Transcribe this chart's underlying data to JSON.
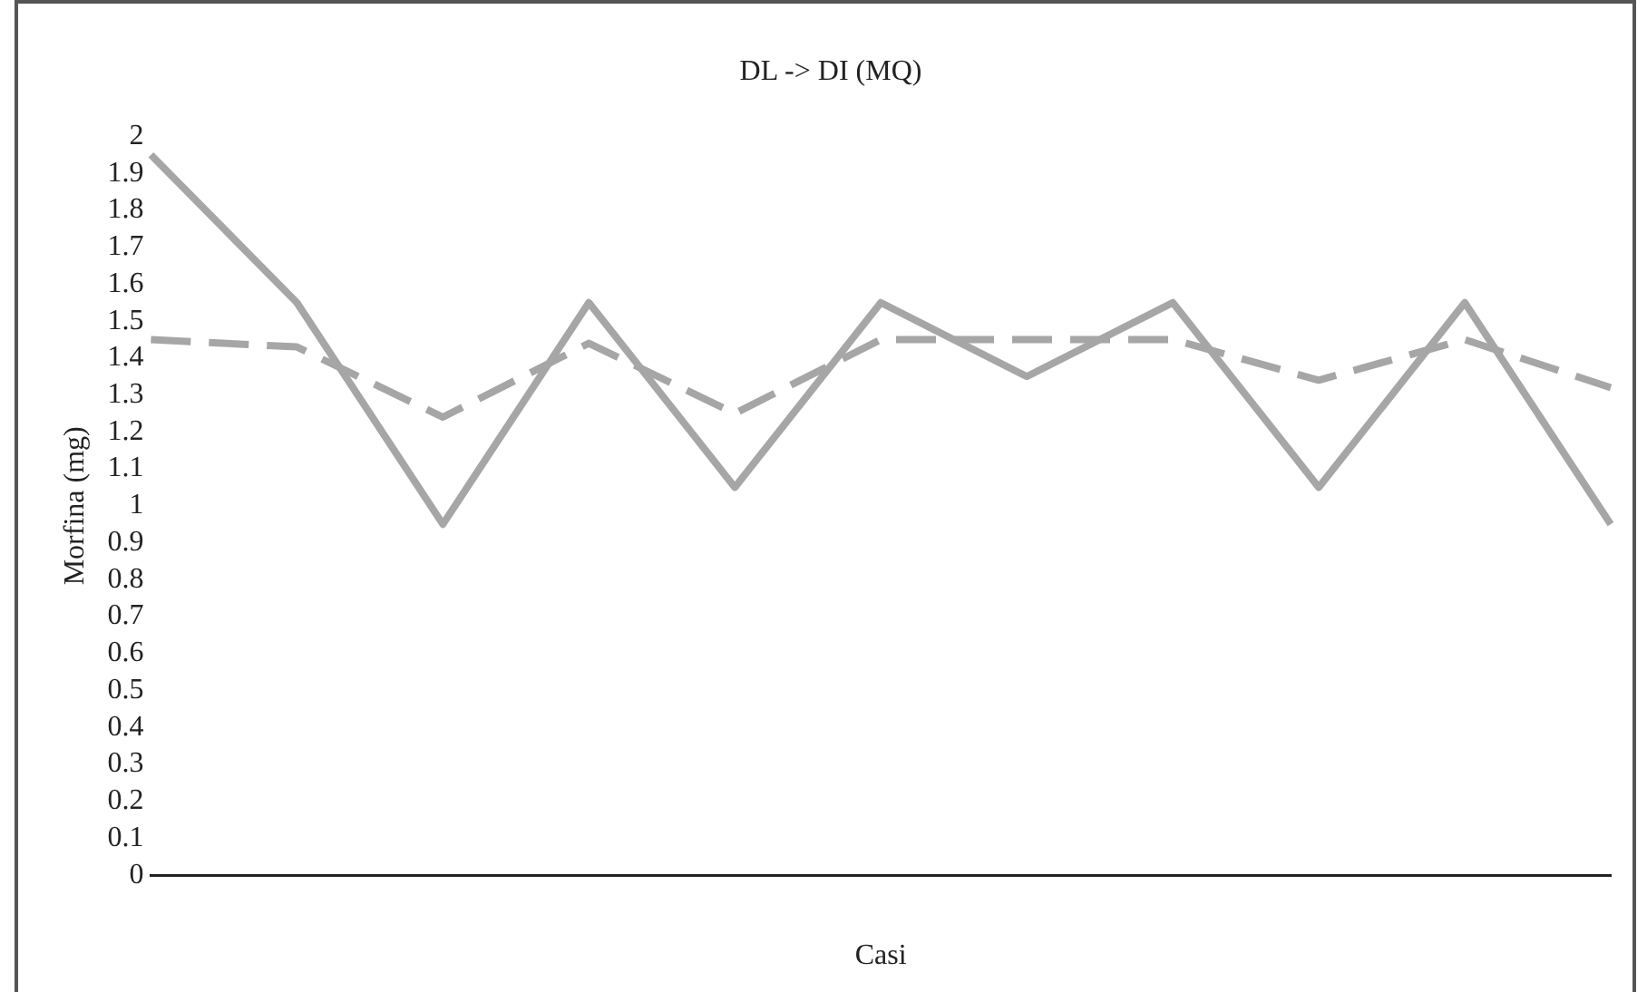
{
  "chart_data": {
    "type": "line",
    "title": "DL -> DI (MQ)",
    "xlabel": "Casi",
    "ylabel": "Morfina (mg)",
    "categories": [
      null,
      null,
      null,
      null,
      null,
      null,
      null,
      null,
      null,
      null,
      null
    ],
    "series": [
      {
        "color": "#a6a6a6",
        "line_style": "solid",
        "values": [
          1.95,
          1.55,
          0.95,
          1.55,
          1.05,
          1.55,
          1.35,
          1.55,
          1.05,
          1.55,
          0.95
        ]
      },
      {
        "color": "#a6a6a6",
        "line_style": "dashed",
        "values": [
          1.45,
          1.43,
          1.24,
          1.44,
          1.25,
          1.45,
          1.45,
          1.45,
          1.34,
          1.45,
          1.32
        ]
      }
    ],
    "ylim": [
      0,
      2
    ],
    "yticks": [
      0,
      0.1,
      0.2,
      0.3,
      0.4,
      0.5,
      0.6,
      0.7,
      0.8,
      0.9,
      1,
      1.1,
      1.2,
      1.3,
      1.4,
      1.5,
      1.6,
      1.7,
      1.8,
      1.9,
      2
    ],
    "grid": false,
    "legend": false,
    "marker": "none"
  }
}
